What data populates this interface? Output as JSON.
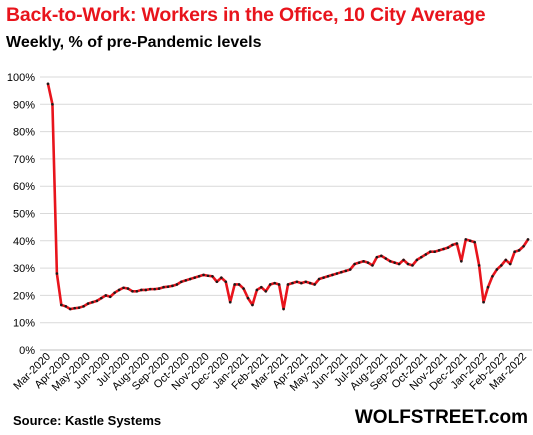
{
  "title": "Back-to-Work:  Workers in the Office, 10 City Average",
  "subtitle": "Weekly, % of pre-Pandemic levels",
  "source": "Source: Kastle Systems",
  "brand": "WOLFSTREET.com",
  "colors": {
    "title": "#e8141c",
    "line": "#e8141c",
    "marker": "#1a1a1a",
    "grid": "#d9d9d9"
  },
  "chart_data": {
    "type": "line",
    "title": "Back-to-Work:  Workers in the Office, 10 City Average",
    "subtitle": "Weekly, % of pre-Pandemic levels",
    "ylim": [
      0,
      100
    ],
    "y_ticks": [
      "0%",
      "10%",
      "20%",
      "30%",
      "40%",
      "50%",
      "60%",
      "70%",
      "80%",
      "90%",
      "100%"
    ],
    "x_tick_labels": [
      "Mar-2020",
      "Apr-2020",
      "May-2020",
      "Jun-2020",
      "Jul-2020",
      "Aug-2020",
      "Sep-2020",
      "Oct-2020",
      "Nov-2020",
      "Dec-2020",
      "Jan-2021",
      "Feb-2021",
      "Mar-2021",
      "Apr-2021",
      "May-2021",
      "Jun-2021",
      "Jul-2021",
      "Aug-2021",
      "Sep-2021",
      "Oct-2021",
      "Nov-2021",
      "Dec-2021",
      "Jan-2022",
      "Feb-2022",
      "Mar-2022"
    ],
    "grid": true,
    "legend": "none",
    "series": [
      {
        "values": [
          97.5,
          90,
          28,
          16.5,
          16,
          15,
          15.3,
          15.5,
          16,
          17,
          17.5,
          18,
          19,
          20,
          19.5,
          21,
          22,
          22.8,
          22.5,
          21.5,
          21.5,
          22,
          22,
          22.3,
          22.3,
          22.5,
          23,
          23.2,
          23.5,
          24,
          25,
          25.5,
          26,
          26.5,
          27,
          27.5,
          27.2,
          27,
          25,
          26.5,
          25,
          17.5,
          24,
          24,
          22.5,
          19,
          16.5,
          22,
          23,
          21.5,
          24,
          24.5,
          24,
          15,
          24,
          24.5,
          25,
          24.5,
          25,
          24.5,
          24,
          26,
          26.5,
          27,
          27.5,
          28,
          28.5,
          29,
          29.5,
          31.5,
          32,
          32.5,
          32,
          31,
          34,
          34.5,
          33.5,
          32.5,
          32,
          31.5,
          33,
          31.5,
          31,
          33,
          34,
          35,
          36,
          36,
          36.5,
          37,
          37.5,
          38.5,
          39,
          32.5,
          40.5,
          40,
          39.5,
          31,
          17.5,
          23,
          27,
          29.5,
          31,
          33,
          31.5,
          36,
          36.5,
          38,
          40.5
        ]
      }
    ]
  }
}
